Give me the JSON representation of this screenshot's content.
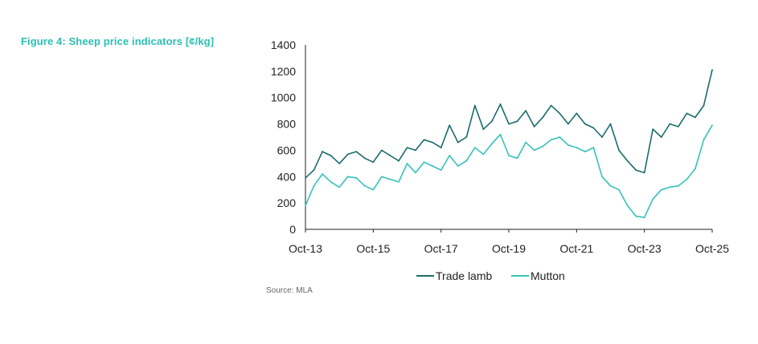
{
  "figure": {
    "title": "Figure 4: Sheep price indicators [¢/kg]",
    "source": "Source: MLA"
  },
  "colors": {
    "trade_lamb": "#1a6b6b",
    "mutton": "#35c3bb",
    "title": "#2bbfb4",
    "axis": "#222222"
  },
  "chart_data": {
    "type": "line",
    "title": "Figure 4: Sheep price indicators [¢/kg]",
    "xlabel": "",
    "ylabel": "",
    "ylim": [
      0,
      1400
    ],
    "yticks": [
      "0",
      "200",
      "400",
      "600",
      "800",
      "1000",
      "1200",
      "1400"
    ],
    "xlim": [
      "2013-10",
      "2025-10"
    ],
    "xticks": [
      "Oct-13",
      "Oct-15",
      "Oct-17",
      "Oct-19",
      "Oct-21",
      "Oct-23",
      "Oct-25"
    ],
    "grid": false,
    "legend_position": "bottom",
    "x": [
      "2013-10",
      "2014-01",
      "2014-04",
      "2014-07",
      "2014-10",
      "2015-01",
      "2015-04",
      "2015-07",
      "2015-10",
      "2016-01",
      "2016-04",
      "2016-07",
      "2016-10",
      "2017-01",
      "2017-04",
      "2017-07",
      "2017-10",
      "2018-01",
      "2018-04",
      "2018-07",
      "2018-10",
      "2019-01",
      "2019-04",
      "2019-07",
      "2019-10",
      "2020-01",
      "2020-04",
      "2020-07",
      "2020-10",
      "2021-01",
      "2021-04",
      "2021-07",
      "2021-10",
      "2022-01",
      "2022-04",
      "2022-07",
      "2022-10",
      "2023-01",
      "2023-04",
      "2023-07",
      "2023-10",
      "2024-01",
      "2024-04",
      "2024-07",
      "2024-10",
      "2025-01",
      "2025-04",
      "2025-07",
      "2025-10"
    ],
    "series": [
      {
        "name": "Trade lamb",
        "values": [
          390,
          450,
          590,
          560,
          500,
          570,
          590,
          540,
          510,
          600,
          560,
          520,
          620,
          600,
          680,
          660,
          620,
          790,
          660,
          700,
          940,
          760,
          820,
          950,
          800,
          820,
          900,
          780,
          850,
          940,
          880,
          800,
          880,
          800,
          770,
          700,
          800,
          600,
          520,
          450,
          430,
          760,
          700,
          800,
          780,
          880,
          850,
          940,
          1210
        ]
      },
      {
        "name": "Mutton",
        "values": [
          180,
          330,
          420,
          360,
          320,
          400,
          390,
          330,
          300,
          400,
          380,
          360,
          500,
          430,
          510,
          480,
          450,
          560,
          480,
          520,
          620,
          570,
          650,
          720,
          560,
          540,
          660,
          600,
          630,
          680,
          700,
          640,
          620,
          590,
          620,
          400,
          330,
          300,
          180,
          100,
          90,
          230,
          300,
          320,
          330,
          380,
          460,
          680,
          790
        ]
      }
    ]
  },
  "legend": {
    "items": [
      "Trade lamb",
      "Mutton"
    ]
  }
}
